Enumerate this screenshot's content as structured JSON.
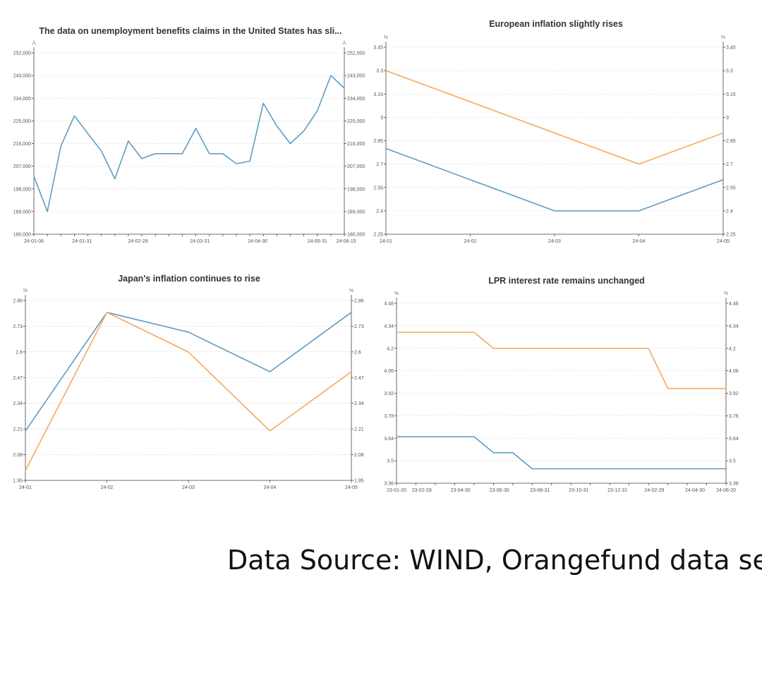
{
  "source_text": "Data Source: WIND, Orangefund data sea",
  "colors": {
    "blue": "#5e9cc3",
    "orange": "#f5a95c"
  },
  "chart_data": [
    {
      "type": "line",
      "title": "The data on unemployment benefits claims in the United States has sli...",
      "unit_left": "人",
      "unit_right": "人",
      "ylim": [
        180000,
        252000
      ],
      "yticks": [
        "180,000",
        "189,000",
        "198,000",
        "207,000",
        "216,000",
        "225,000",
        "234,000",
        "243,000",
        "252,000"
      ],
      "xticks": [
        {
          "label": "24-01-06",
          "at": 0
        },
        {
          "label": "24-01-31",
          "at": 3.57
        },
        {
          "label": "24-02-29",
          "at": 7.71
        },
        {
          "label": "24-03-31",
          "at": 12.29
        },
        {
          "label": "24-04-30",
          "at": 16.57
        },
        {
          "label": "24-05-31",
          "at": 21.0
        },
        {
          "label": "24-06-15",
          "at": 23.14
        }
      ],
      "x_count": 24,
      "grid": true,
      "legend": "none",
      "series": [
        {
          "color": "blue",
          "values": [
            203000,
            189000,
            215000,
            227000,
            220000,
            213000,
            202000,
            217000,
            210000,
            212000,
            212000,
            212000,
            222000,
            212000,
            212000,
            208000,
            209000,
            232000,
            223000,
            216000,
            221000,
            229000,
            243000,
            238000
          ]
        }
      ]
    },
    {
      "type": "line",
      "title": "European inflation slightly rises",
      "unit_left": "%",
      "unit_right": "%",
      "ylim": [
        2.25,
        3.45
      ],
      "yticks": [
        "2.25",
        "2.4",
        "2.55",
        "2.7",
        "2.85",
        "3",
        "3.15",
        "3.3",
        "3.45"
      ],
      "xticks": [
        {
          "label": "24-01",
          "at": 0
        },
        {
          "label": "24-02",
          "at": 1
        },
        {
          "label": "24-03",
          "at": 2
        },
        {
          "label": "24-04",
          "at": 3
        },
        {
          "label": "24-05",
          "at": 4
        }
      ],
      "x_count": 5,
      "grid": true,
      "legend": "none",
      "series": [
        {
          "color": "orange",
          "values": [
            3.3,
            3.1,
            2.9,
            2.7,
            2.9
          ]
        },
        {
          "color": "blue",
          "values": [
            2.8,
            2.6,
            2.4,
            2.4,
            2.6
          ]
        }
      ]
    },
    {
      "type": "line",
      "title": "Japan's inflation continues to rise",
      "unit_left": "%",
      "unit_right": "%",
      "ylim": [
        1.95,
        2.86
      ],
      "yticks": [
        "1.95",
        "2.08",
        "2.21",
        "2.34",
        "2.47",
        "2.6",
        "2.73",
        "2.86"
      ],
      "xticks": [
        {
          "label": "24-01",
          "at": 0
        },
        {
          "label": "24-02",
          "at": 1
        },
        {
          "label": "24-03",
          "at": 2
        },
        {
          "label": "24-04",
          "at": 3
        },
        {
          "label": "24-05",
          "at": 4
        }
      ],
      "x_count": 5,
      "grid": true,
      "legend": "none",
      "series": [
        {
          "color": "blue",
          "values": [
            2.2,
            2.8,
            2.7,
            2.5,
            2.8
          ]
        },
        {
          "color": "orange",
          "values": [
            2.0,
            2.8,
            2.6,
            2.2,
            2.5
          ]
        }
      ]
    },
    {
      "type": "line",
      "title": "LPR interest rate remains unchanged",
      "unit_left": "%",
      "unit_right": "%",
      "ylim": [
        3.36,
        4.48
      ],
      "yticks": [
        "3.36",
        "3.5",
        "3.64",
        "3.78",
        "3.92",
        "4.06",
        "4.2",
        "4.34",
        "4.48"
      ],
      "xticks": [
        {
          "label": "23-01-20",
          "at": 0
        },
        {
          "label": "23-02-28",
          "at": 1.3
        },
        {
          "label": "23-04-30",
          "at": 3.3
        },
        {
          "label": "23-06-30",
          "at": 5.3
        },
        {
          "label": "23-08-31",
          "at": 7.4
        },
        {
          "label": "23-10-31",
          "at": 9.4
        },
        {
          "label": "23-12-31",
          "at": 11.4
        },
        {
          "label": "24-02-29",
          "at": 13.3
        },
        {
          "label": "24-04-30",
          "at": 15.4
        },
        {
          "label": "24-06-20",
          "at": 17.0
        }
      ],
      "x_count": 18,
      "grid": true,
      "legend": "none",
      "series": [
        {
          "color": "orange",
          "values": [
            4.3,
            4.3,
            4.3,
            4.3,
            4.3,
            4.2,
            4.2,
            4.2,
            4.2,
            4.2,
            4.2,
            4.2,
            4.2,
            4.2,
            3.95,
            3.95,
            3.95,
            3.95
          ]
        },
        {
          "color": "blue",
          "values": [
            3.65,
            3.65,
            3.65,
            3.65,
            3.65,
            3.55,
            3.55,
            3.45,
            3.45,
            3.45,
            3.45,
            3.45,
            3.45,
            3.45,
            3.45,
            3.45,
            3.45,
            3.45
          ]
        }
      ]
    }
  ]
}
